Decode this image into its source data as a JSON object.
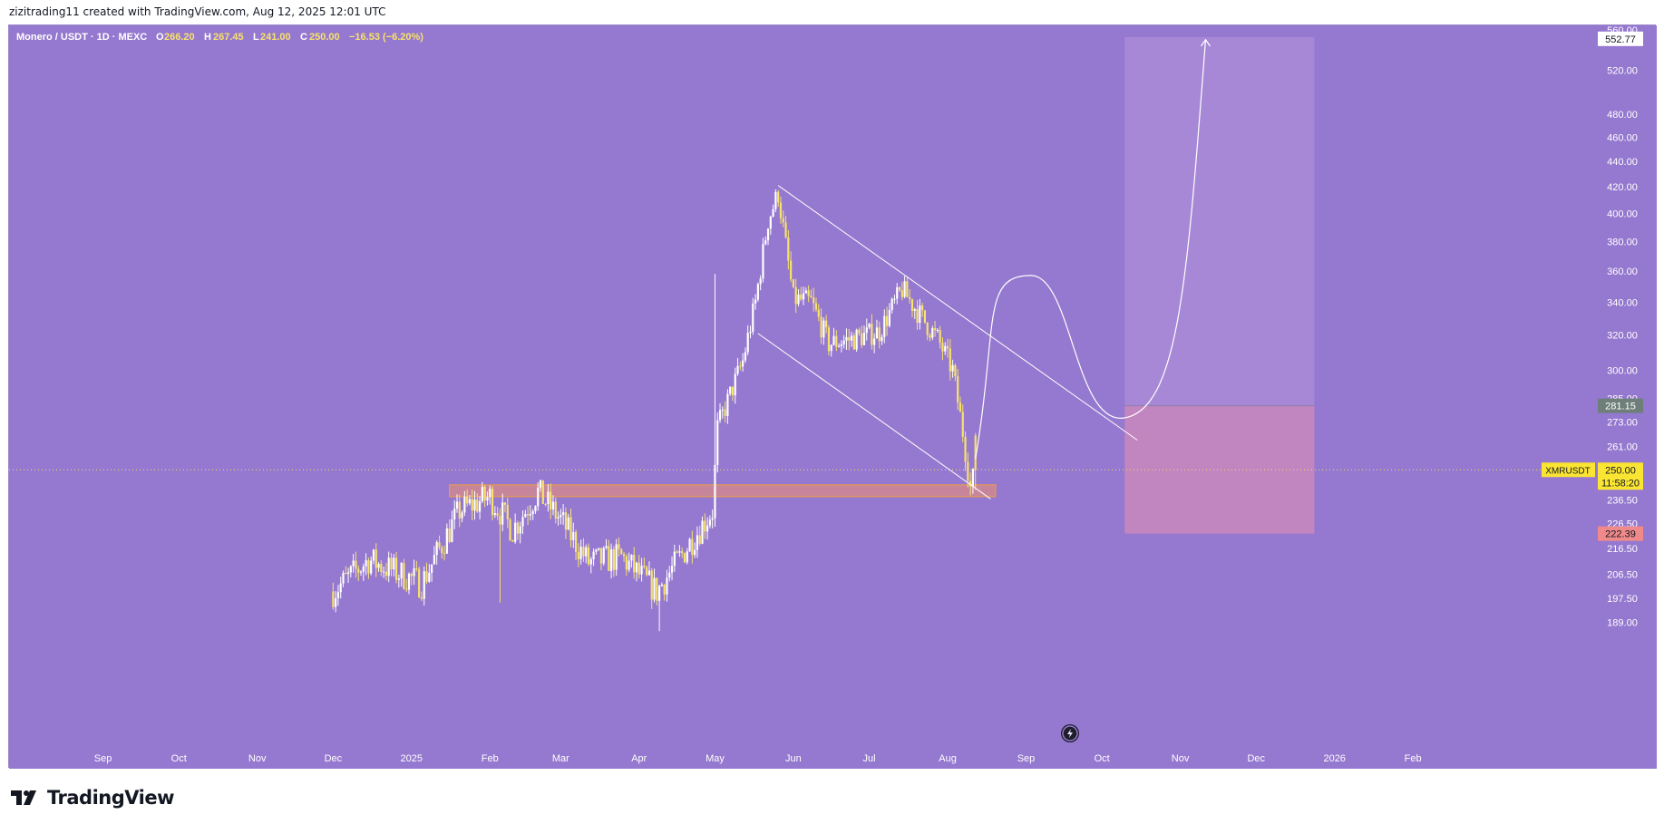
{
  "header": {
    "text": "zizitrading11 created with TradingView.com, Aug 12, 2025 12:01 UTC"
  },
  "legend": {
    "symbol": "Monero / USDT · 1D · MEXC",
    "o_label": "O",
    "o": "266.20",
    "h_label": "H",
    "h": "267.45",
    "l_label": "L",
    "l": "241.00",
    "c_label": "C",
    "c": "250.00",
    "change": "−16.53 (−6.20%)"
  },
  "branding": {
    "name": "TradingView"
  },
  "colors": {
    "background": "#9578cf",
    "candle_up": "#ffffff",
    "candle_down": "#f7e26b",
    "support_zone": "#d88a8a",
    "target_zone": "#a98ad6",
    "stop_zone": "#c586bd",
    "price_label": "#fbe533",
    "legend_value": "#f7e26b"
  },
  "chart_data": {
    "type": "candlestick",
    "symbol": "XMRUSDT",
    "timeframe": "1D",
    "exchange": "MEXC",
    "y_scale": "log",
    "ylim": [
      183,
      560
    ],
    "y_ticks": [
      "560.00",
      "520.00",
      "480.00",
      "460.00",
      "440.00",
      "420.00",
      "400.00",
      "380.00",
      "360.00",
      "340.00",
      "320.00",
      "300.00",
      "285.00",
      "273.00",
      "261.00",
      "250.00",
      "236.50",
      "226.50",
      "216.50",
      "206.50",
      "197.50",
      "189.00"
    ],
    "x_ticks": [
      "Sep",
      "Oct",
      "Nov",
      "Dec",
      "2025",
      "Feb",
      "Mar",
      "Apr",
      "May",
      "Jun",
      "Jul",
      "Aug",
      "Sep",
      "Oct",
      "Nov",
      "Dec",
      "2026",
      "Feb"
    ],
    "price_labels": [
      {
        "kind": "target",
        "value": "552.77"
      },
      {
        "kind": "entry",
        "value": "281.15"
      },
      {
        "kind": "current",
        "symbol": "XMRUSDT",
        "value": "250.00",
        "countdown": "11:58:20"
      },
      {
        "kind": "stop",
        "value": "222.39"
      }
    ],
    "ohlc_last": {
      "open": 266.2,
      "high": 267.45,
      "low": 241.0,
      "close": 250.0,
      "change": -16.53,
      "change_pct": -6.2
    },
    "anchors": [
      {
        "date": "2024-12-01",
        "price": 200
      },
      {
        "date": "2024-12-15",
        "price": 212
      },
      {
        "date": "2025-01-05",
        "price": 203
      },
      {
        "date": "2025-01-20",
        "price": 232
      },
      {
        "date": "2025-02-01",
        "price": 238
      },
      {
        "date": "2025-02-10",
        "price": 224
      },
      {
        "date": "2025-02-20",
        "price": 240
      },
      {
        "date": "2025-03-01",
        "price": 228
      },
      {
        "date": "2025-03-12",
        "price": 211
      },
      {
        "date": "2025-03-25",
        "price": 213
      },
      {
        "date": "2025-04-08",
        "price": 200
      },
      {
        "date": "2025-04-22",
        "price": 220
      },
      {
        "date": "2025-04-30",
        "price": 232
      },
      {
        "date": "2025-05-02",
        "price": 270
      },
      {
        "date": "2025-05-12",
        "price": 305
      },
      {
        "date": "2025-05-17",
        "price": 340
      },
      {
        "date": "2025-05-22",
        "price": 395
      },
      {
        "date": "2025-05-26",
        "price": 415
      },
      {
        "date": "2025-06-01",
        "price": 342
      },
      {
        "date": "2025-06-08",
        "price": 340
      },
      {
        "date": "2025-06-15",
        "price": 315
      },
      {
        "date": "2025-06-25",
        "price": 318
      },
      {
        "date": "2025-07-05",
        "price": 322
      },
      {
        "date": "2025-07-14",
        "price": 348
      },
      {
        "date": "2025-07-22",
        "price": 330
      },
      {
        "date": "2025-07-28",
        "price": 318
      },
      {
        "date": "2025-08-03",
        "price": 300
      },
      {
        "date": "2025-08-07",
        "price": 268
      },
      {
        "date": "2025-08-10",
        "price": 242
      },
      {
        "date": "2025-08-12",
        "price": 250
      }
    ],
    "support_zone": {
      "date_start": "2025-01-16",
      "date_end": "2025-08-20",
      "price_low": 238.0,
      "price_high": 243.2
    },
    "channel_upper": [
      {
        "date": "2025-05-26",
        "price": 421
      },
      {
        "date": "2025-10-15",
        "price": 264
      }
    ],
    "channel_lower": [
      {
        "date": "2025-05-18",
        "price": 321
      },
      {
        "date": "2025-08-18",
        "price": 237
      }
    ],
    "projection_path": [
      {
        "date": "2025-08-12",
        "price": 255
      },
      {
        "date": "2025-09-03",
        "price": 357
      },
      {
        "date": "2025-10-10",
        "price": 275
      },
      {
        "date": "2025-11-11",
        "price": 550
      }
    ],
    "long_position": {
      "date_start": "2025-10-10",
      "date_end": "2025-12-24",
      "entry": 281.15,
      "target": 552.77,
      "stop": 222.39
    }
  }
}
